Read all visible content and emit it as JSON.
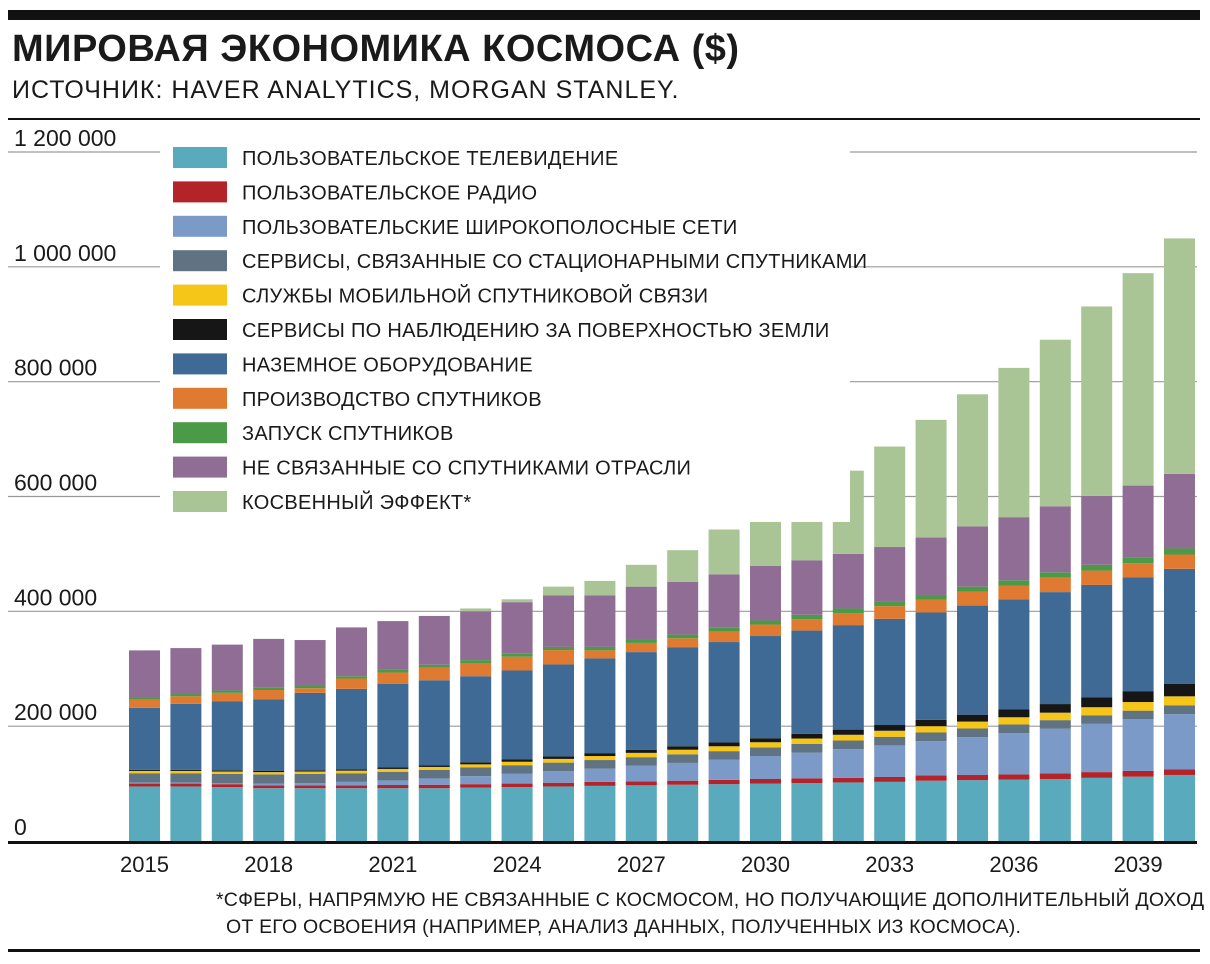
{
  "header": {
    "title": "МИРОВАЯ ЭКОНОМИКА КОСМОСА ($)",
    "subtitle": "ИСТОЧНИК: HAVER ANALYTICS, MORGAN STANLEY."
  },
  "footnote": {
    "line1": "*СФЕРЫ, НАПРЯМУЮ НЕ СВЯЗАННЫЕ С КОСМОСОМ, НО ПОЛУЧАЮЩИЕ ДОПОЛНИТЕЛЬНЫЙ ДОХОД",
    "line2": "ОТ ЕГО ОСВОЕНИЯ (НАПРИМЕР, АНАЛИЗ ДАННЫХ, ПОЛУЧЕННЫХ ИЗ КОСМОСА)."
  },
  "chart_data": {
    "type": "bar",
    "stacked": true,
    "legend_position": "top-left",
    "grid": true,
    "ylim": [
      0,
      1200000
    ],
    "yticks": [
      0,
      200000,
      400000,
      600000,
      800000,
      1000000,
      1200000
    ],
    "ytick_labels": [
      "0",
      "200 000",
      "400 000",
      "600 000",
      "800 000",
      "1 000 000",
      "1 200 000"
    ],
    "x": [
      2015,
      2016,
      2017,
      2018,
      2019,
      2020,
      2021,
      2022,
      2023,
      2024,
      2025,
      2026,
      2027,
      2028,
      2029,
      2030,
      2031,
      2032,
      2033,
      2034,
      2035,
      2036,
      2037,
      2038,
      2039,
      2040
    ],
    "xtick_labels": [
      "2015",
      "2018",
      "2021",
      "2024",
      "2027",
      "2030",
      "2033",
      "2036",
      "2039"
    ],
    "xtick_years": [
      2015,
      2018,
      2021,
      2024,
      2027,
      2030,
      2033,
      2036,
      2039
    ],
    "series": [
      {
        "name": "ПОЛЬЗОВАТЕЛЬСКОЕ ТЕЛЕВИДЕНИЕ",
        "color": "#5aaabe",
        "values": [
          95000,
          95000,
          94000,
          92000,
          92000,
          92000,
          92000,
          92000,
          93000,
          94000,
          95000,
          96000,
          97000,
          98000,
          99000,
          100000,
          101000,
          102000,
          103000,
          105000,
          106000,
          107000,
          108000,
          110000,
          112000,
          115000
        ]
      },
      {
        "name": "ПОЛЬЗОВАТЕЛЬСКОЕ РАДИО",
        "color": "#b5232a",
        "values": [
          5000,
          5000,
          5000,
          5000,
          5000,
          5000,
          5500,
          6000,
          6000,
          6000,
          6500,
          7000,
          7000,
          7000,
          7500,
          8000,
          8000,
          8000,
          8500,
          9000,
          9000,
          9000,
          9500,
          10000,
          10000,
          10000
        ]
      },
      {
        "name": "ПОЛЬЗОВАТЕЛЬСКИЕ ШИРОКОПОЛОСНЫЕ СЕТИ",
        "color": "#7b9ac8",
        "values": [
          2000,
          2000,
          2000,
          3000,
          4000,
          6000,
          8000,
          11000,
          14000,
          17000,
          20000,
          23000,
          27000,
          31000,
          35000,
          40000,
          45000,
          50000,
          55000,
          60000,
          66000,
          72000,
          78000,
          84000,
          90000,
          96000
        ]
      },
      {
        "name": "СЕРВИСЫ, СВЯЗАННЫЕ СО СТАЦИОНАРНЫМИ СПУТНИКАМИ",
        "color": "#5f7382",
        "values": [
          16000,
          16000,
          16000,
          16000,
          16000,
          15000,
          15000,
          15000,
          15000,
          15000,
          15000,
          15000,
          15000,
          15000,
          15000,
          15000,
          15000,
          15000,
          15000,
          15000,
          15000,
          15000,
          15000,
          15000,
          15000,
          15000
        ]
      },
      {
        "name": "СЛУЖБЫ МОБИЛЬНОЙ СПУТНИКОВОЙ СВЯЗИ",
        "color": "#f5c518",
        "values": [
          4000,
          4000,
          4000,
          4000,
          4000,
          4500,
          5000,
          5000,
          5500,
          6000,
          6500,
          7000,
          7500,
          8000,
          8500,
          9000,
          9500,
          10000,
          10500,
          11000,
          12000,
          12500,
          13000,
          14000,
          15000,
          16000
        ]
      },
      {
        "name": "СЕРВИСЫ ПО НАБЛЮДЕНИЮ ЗА ПОВЕРХНОСТЬЮ ЗЕМЛИ",
        "color": "#161616",
        "values": [
          2000,
          2000,
          2000,
          2000,
          2000,
          2500,
          3000,
          3000,
          3500,
          4000,
          4500,
          5000,
          5500,
          6000,
          6500,
          7000,
          8000,
          9000,
          10000,
          11000,
          12000,
          13500,
          15000,
          17000,
          19000,
          22000
        ]
      },
      {
        "name": "НАЗЕМНОЕ ОБОРУДОВАНИЕ",
        "color": "#3e6a95",
        "values": [
          108000,
          115000,
          120000,
          125000,
          135000,
          140000,
          145000,
          148000,
          150000,
          155000,
          160000,
          165000,
          170000,
          172000,
          175000,
          178000,
          180000,
          182000,
          185000,
          187000,
          190000,
          192000,
          195000,
          196000,
          198000,
          200000
        ]
      },
      {
        "name": "ПРОИЗВОДСТВО СПУТНИКОВ",
        "color": "#e07a30",
        "values": [
          14000,
          13000,
          15000,
          16000,
          8000,
          18000,
          20000,
          22000,
          23000,
          24000,
          25000,
          14000,
          16000,
          16000,
          18000,
          20000,
          20000,
          21000,
          22000,
          22000,
          24000,
          24000,
          25000,
          25000,
          25000,
          25000
        ]
      },
      {
        "name": "ЗАПУСК СПУТНИКОВ",
        "color": "#4b9a47",
        "values": [
          4000,
          4000,
          4000,
          4000,
          4000,
          4000,
          4500,
          5000,
          5000,
          5000,
          5500,
          6000,
          6000,
          6500,
          7000,
          7000,
          7500,
          8000,
          8000,
          8500,
          9000,
          9000,
          9500,
          10000,
          10000,
          10500
        ]
      },
      {
        "name": "НЕ СВЯЗАННЫЕ СО СПУТНИКАМИ ОТРАСЛИ",
        "color": "#8f6d94",
        "values": [
          82000,
          80000,
          80000,
          85000,
          80000,
          85000,
          85000,
          85000,
          85000,
          90000,
          90000,
          90000,
          92000,
          92000,
          93000,
          95000,
          95000,
          95000,
          95000,
          100000,
          105000,
          110000,
          115000,
          120000,
          125000,
          130000
        ]
      },
      {
        "name": "КОСВЕННЫЙ ЭФФЕКТ*",
        "color": "#a9c595",
        "values": [
          0,
          0,
          0,
          0,
          0,
          0,
          0,
          0,
          5000,
          5000,
          15000,
          25000,
          38000,
          55000,
          78000,
          100000,
          120000,
          145000,
          175000,
          205000,
          230000,
          260000,
          290000,
          330000,
          370000,
          410000
        ]
      }
    ]
  }
}
